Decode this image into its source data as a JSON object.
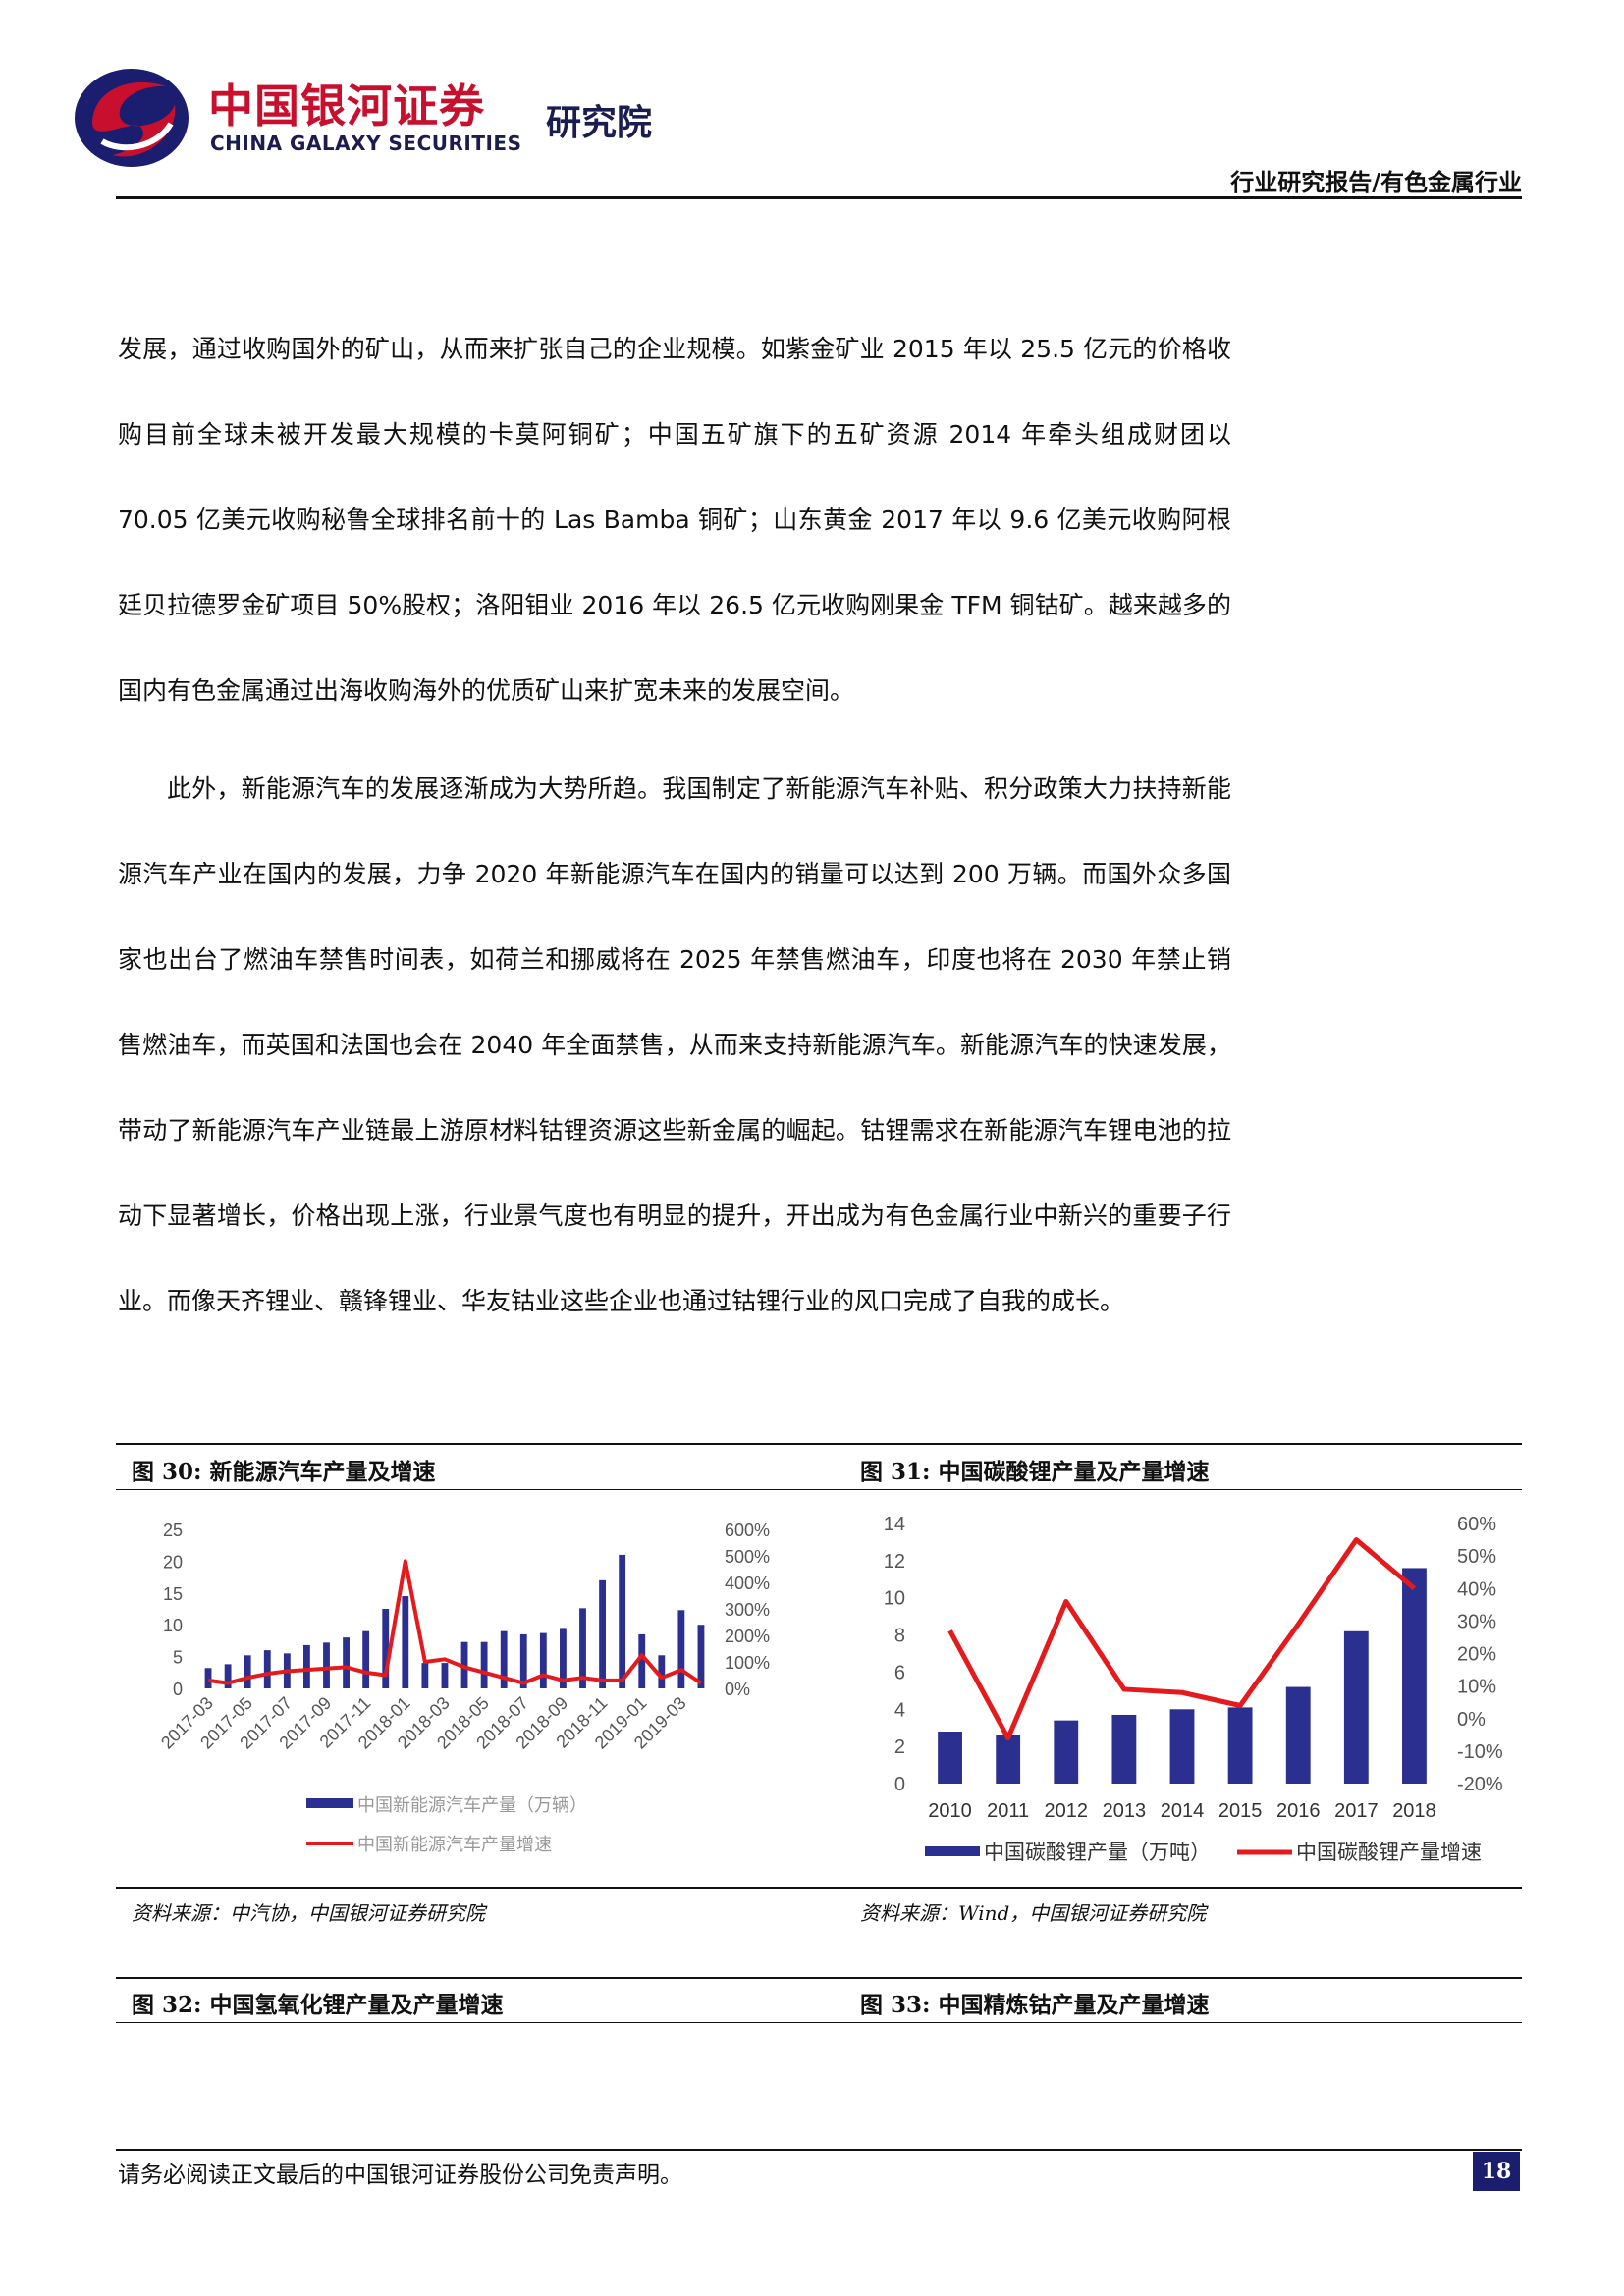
{
  "header": {
    "logo_cn": "中国银河证券",
    "logo_en": "CHINA GALAXY SECURITIES",
    "logo_institute": "研究院",
    "report_type": "行业研究报告/有色金属行业"
  },
  "body": {
    "para1": "发展，通过收购国外的矿山，从而来扩张自己的企业规模。如紫金矿业 2015 年以 25.5 亿元的价格收购目前全球未被开发最大规模的卡莫阿铜矿；中国五矿旗下的五矿资源 2014 年牵头组成财团以 70.05 亿美元收购秘鲁全球排名前十的 Las Bamba 铜矿；山东黄金 2017 年以 9.6 亿美元收购阿根廷贝拉德罗金矿项目 50%股权；洛阳钼业 2016 年以 26.5 亿元收购刚果金 TFM 铜钴矿。越来越多的国内有色金属通过出海收购海外的优质矿山来扩宽未来的发展空间。",
    "para2": "此外，新能源汽车的发展逐渐成为大势所趋。我国制定了新能源汽车补贴、积分政策大力扶持新能源汽车产业在国内的发展，力争 2020 年新能源汽车在国内的销量可以达到 200 万辆。而国外众多国家也出台了燃油车禁售时间表，如荷兰和挪威将在 2025 年禁售燃油车，印度也将在 2030 年禁止销售燃油车，而英国和法国也会在 2040 年全面禁售，从而来支持新能源汽车。新能源汽车的快速发展，带动了新能源汽车产业链最上游原材料钴锂资源这些新金属的崛起。钴锂需求在新能源汽车锂电池的拉动下显著增长，价格出现上涨，行业景气度也有明显的提升，开出成为有色金属行业中新兴的重要子行业。而像天齐锂业、赣锋锂业、华友钴业这些企业也通过钴锂行业的风口完成了自我的成长。"
  },
  "figures": {
    "fig30_caption": "图 30:  新能源汽车产量及增速",
    "fig31_caption": "图 31:  中国碳酸锂产量及产量增速",
    "fig30_source": "资料来源：中汽协，中国银河证券研究院",
    "fig31_source": "资料来源：Wind，中国银河证券研究院",
    "fig32_caption": "图 32:  中国氢氧化锂产量及产量增速",
    "fig33_caption": "图 33:  中国精炼钴产量及产量增速"
  },
  "chart_data": [
    {
      "type": "bar+line",
      "x": [
        "2017-03",
        "2017-04",
        "2017-05",
        "2017-06",
        "2017-07",
        "2017-08",
        "2017-09",
        "2017-10",
        "2017-11",
        "2017-12",
        "2018-01",
        "2018-02",
        "2018-03",
        "2018-04",
        "2018-05",
        "2018-06",
        "2018-07",
        "2018-08",
        "2018-09",
        "2018-10",
        "2018-11",
        "2018-12",
        "2019-01",
        "2019-02",
        "2019-03",
        "2019-04"
      ],
      "xtick_labels": [
        "2017-03",
        "2017-05",
        "2017-07",
        "2017-09",
        "2017-11",
        "2018-01",
        "2018-03",
        "2018-05",
        "2018-07",
        "2018-09",
        "2018-11",
        "2019-01",
        "2019-03"
      ],
      "series": [
        {
          "name": "中国新能源汽车产量（万辆）",
          "axis": "left",
          "kind": "bar",
          "color": "#2b2f8f",
          "values": [
            3.2,
            3.8,
            5.2,
            6.0,
            5.5,
            6.8,
            7.2,
            8.0,
            9.0,
            12.5,
            14.5,
            4.0,
            4.0,
            7.3,
            7.3,
            9.0,
            8.5,
            8.7,
            9.5,
            12.6,
            17.0,
            21.0,
            8.5,
            5.2,
            12.3,
            10.0
          ]
        },
        {
          "name": "中国新能源汽车产量增速",
          "axis": "right",
          "kind": "line",
          "color": "#e41a1c",
          "values": [
            30,
            20,
            40,
            55,
            65,
            70,
            75,
            80,
            60,
            50,
            480,
            100,
            110,
            80,
            60,
            40,
            20,
            50,
            30,
            40,
            30,
            30,
            125,
            40,
            70,
            20
          ]
        }
      ],
      "ylim_left": [
        0,
        25
      ],
      "yticks_left": [
        0,
        5,
        10,
        15,
        20,
        25
      ],
      "ylim_right": [
        0,
        600
      ],
      "yticks_right": [
        "0%",
        "100%",
        "200%",
        "300%",
        "400%",
        "500%",
        "600%"
      ],
      "legend": "bottom"
    },
    {
      "type": "bar+line",
      "x": [
        "2010",
        "2011",
        "2012",
        "2013",
        "2014",
        "2015",
        "2016",
        "2017",
        "2018"
      ],
      "series": [
        {
          "name": "中国碳酸锂产量（万吨）",
          "axis": "left",
          "kind": "bar",
          "color": "#2b2f8f",
          "values": [
            2.8,
            2.6,
            3.4,
            3.7,
            4.0,
            4.1,
            5.2,
            8.2,
            11.6
          ]
        },
        {
          "name": "中国碳酸锂产量增速",
          "axis": "right",
          "kind": "line",
          "color": "#e41a1c",
          "values": [
            27,
            -6,
            36,
            9,
            8,
            4,
            29,
            55,
            40
          ]
        }
      ],
      "ylim_left": [
        0,
        14
      ],
      "yticks_left": [
        0,
        2,
        4,
        6,
        8,
        10,
        12,
        14
      ],
      "ylim_right": [
        -20,
        60
      ],
      "yticks_right": [
        "-20%",
        "-10%",
        "0%",
        "10%",
        "20%",
        "30%",
        "40%",
        "50%",
        "60%"
      ],
      "legend": "bottom"
    }
  ],
  "footer": {
    "disclaimer": "请务必阅读正文最后的中国银河证券股份公司免责声明。",
    "page": "18"
  }
}
